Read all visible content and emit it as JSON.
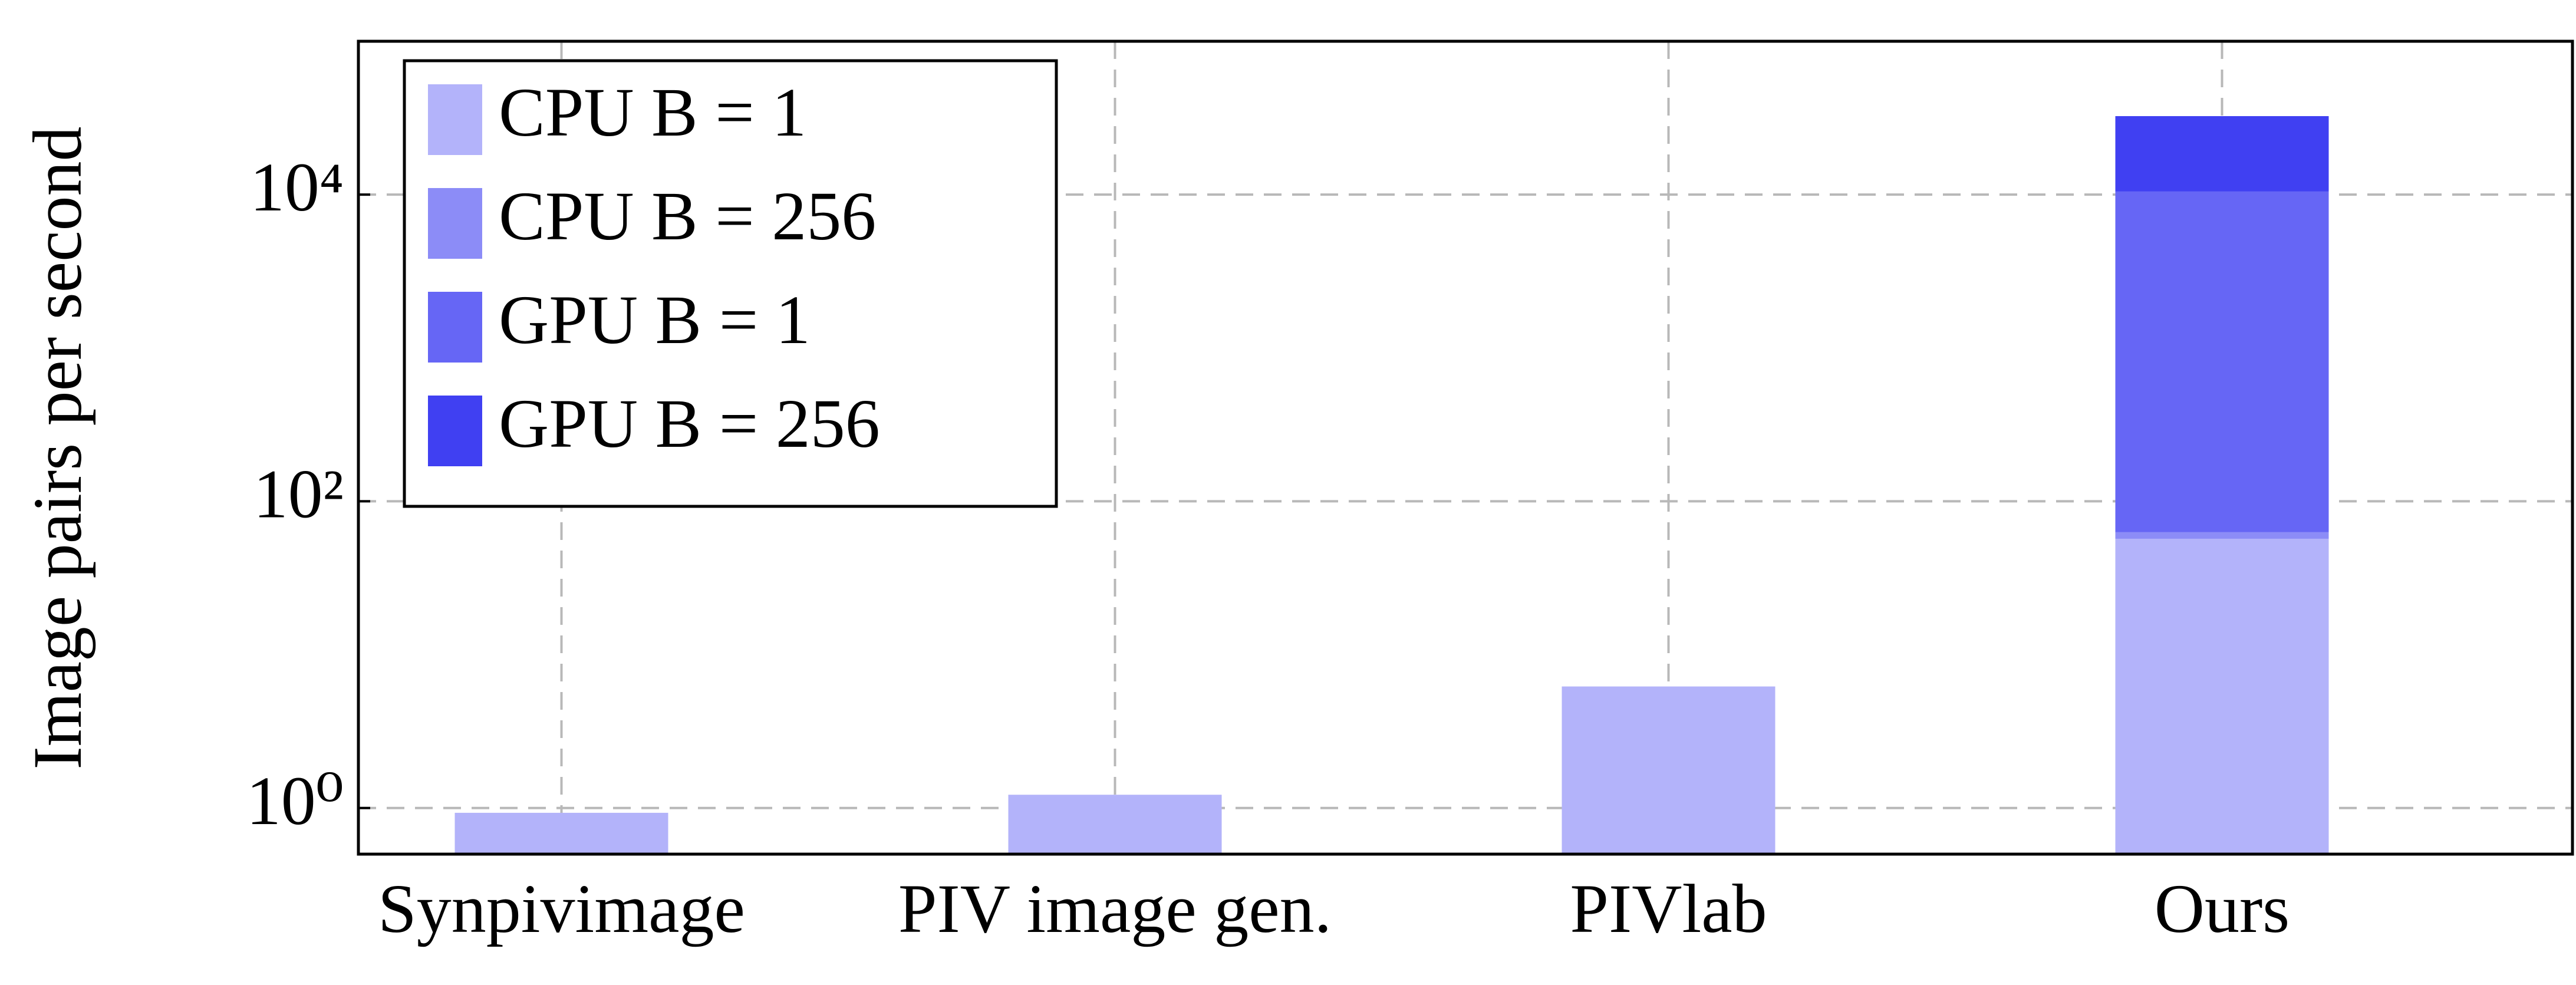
{
  "chart_data": {
    "type": "bar",
    "ylabel": "Image pairs per second",
    "categories": [
      "Synpivimage",
      "PIV image gen.",
      "PIVlab",
      "Ours"
    ],
    "series": [
      {
        "name": "CPU B = 1",
        "color": "#b3b3fa",
        "values": [
          0.93,
          1.22,
          6.2,
          57
        ]
      },
      {
        "name": "CPU B = 256",
        "color": "#8c8cf7",
        "values": [
          null,
          null,
          null,
          63
        ]
      },
      {
        "name": "GPU B = 1",
        "color": "#6666f5",
        "values": [
          null,
          null,
          null,
          10500
        ]
      },
      {
        "name": "GPU B = 256",
        "color": "#4040f2",
        "values": [
          null,
          null,
          null,
          32500
        ]
      }
    ],
    "log_scale": true,
    "ylim": [
      0.5,
      100000
    ],
    "yticks": [
      {
        "value": 1,
        "label": "10⁰"
      },
      {
        "value": 100,
        "label": "10²"
      },
      {
        "value": 10000,
        "label": "10⁴"
      }
    ],
    "grid": true,
    "legend": "upper left"
  }
}
